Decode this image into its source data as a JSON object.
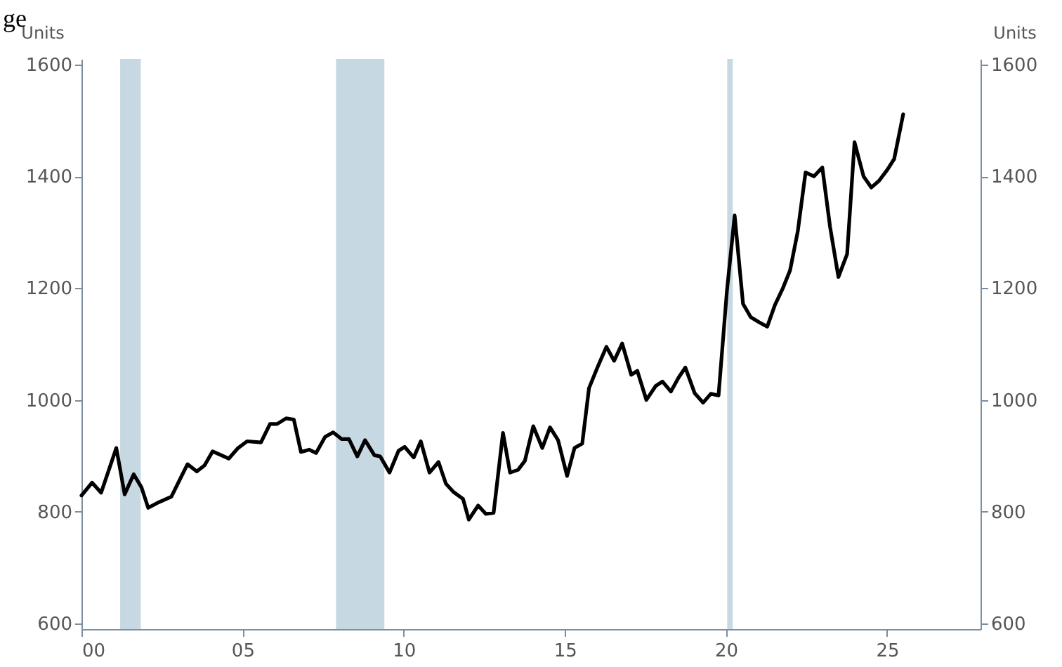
{
  "chart_data": {
    "type": "line",
    "title": "ge",
    "ylabel": "Units",
    "y2label": "Units",
    "x": [
      0,
      0.33,
      0.61,
      1.08,
      1.34,
      1.62,
      1.86,
      2.07,
      2.4,
      2.79,
      3.29,
      3.58,
      3.82,
      4.07,
      4.57,
      4.86,
      5.14,
      5.57,
      5.85,
      6.07,
      6.35,
      6.59,
      6.81,
      7.07,
      7.28,
      7.56,
      7.81,
      8.07,
      8.3,
      8.56,
      8.8,
      9.09,
      9.27,
      9.56,
      9.84,
      10.03,
      10.31,
      10.53,
      10.8,
      11.08,
      11.31,
      11.55,
      11.84,
      12.02,
      12.31,
      12.55,
      12.79,
      13.08,
      13.3,
      13.55,
      13.76,
      14.02,
      14.3,
      14.54,
      14.79,
      15.07,
      15.3,
      15.54,
      15.75,
      16.01,
      16.29,
      16.53,
      16.78,
      17.06,
      17.25,
      17.53,
      17.82,
      18.03,
      18.29,
      18.53,
      18.74,
      19.03,
      19.29,
      19.53,
      19.77,
      20.03,
      20.27,
      20.53,
      20.77,
      21.03,
      21.28,
      21.52,
      21.76,
      21.99,
      22.23,
      22.47,
      22.73,
      22.99,
      23.23,
      23.49,
      23.76,
      23.99,
      24.27,
      24.51,
      24.75,
      25.01,
      25.22,
      25.5
    ],
    "series": [
      {
        "color": "#000000",
        "values": [
          829,
          852,
          834,
          914,
          831,
          867,
          844,
          807,
          817,
          827,
          885,
          872,
          883,
          908,
          895,
          914,
          926,
          924,
          957,
          957,
          967,
          965,
          907,
          911,
          905,
          934,
          942,
          930,
          930,
          899,
          928,
          901,
          899,
          870,
          909,
          916,
          897,
          926,
          870,
          889,
          850,
          835,
          823,
          786,
          811,
          796,
          798,
          941,
          870,
          875,
          891,
          953,
          914,
          951,
          928,
          864,
          914,
          922,
          1021,
          1058,
          1095,
          1070,
          1101,
          1045,
          1052,
          1000,
          1025,
          1033,
          1015,
          1040,
          1058,
          1012,
          995,
          1011,
          1008,
          1195,
          1330,
          1172,
          1148,
          1139,
          1131,
          1170,
          1199,
          1232,
          1302,
          1407,
          1400,
          1416,
          1310,
          1220,
          1261,
          1461,
          1400,
          1380,
          1392,
          1412,
          1431,
          1511
        ]
      }
    ],
    "xlim": [
      0,
      27.9
    ],
    "xticks": [
      {
        "value": 0,
        "label": "00"
      },
      {
        "value": 5,
        "label": "05"
      },
      10,
      15,
      20,
      25
    ],
    "ylim": [
      590,
      1610
    ],
    "yticks": [
      600,
      800,
      1000,
      1200,
      1400,
      1600
    ],
    "y2lim": [
      590,
      1610
    ],
    "y2ticks": [
      600,
      800,
      1000,
      1200,
      1400,
      1600
    ],
    "bands": [
      {
        "axis": "x",
        "from": 1.2,
        "to": 1.84,
        "color": "#c6d8e2"
      },
      {
        "axis": "x",
        "from": 7.9,
        "to": 9.4,
        "color": "#c6d8e2"
      },
      {
        "axis": "x",
        "from": 20.04,
        "to": 20.21,
        "color": "#c6d8e2"
      }
    ]
  }
}
